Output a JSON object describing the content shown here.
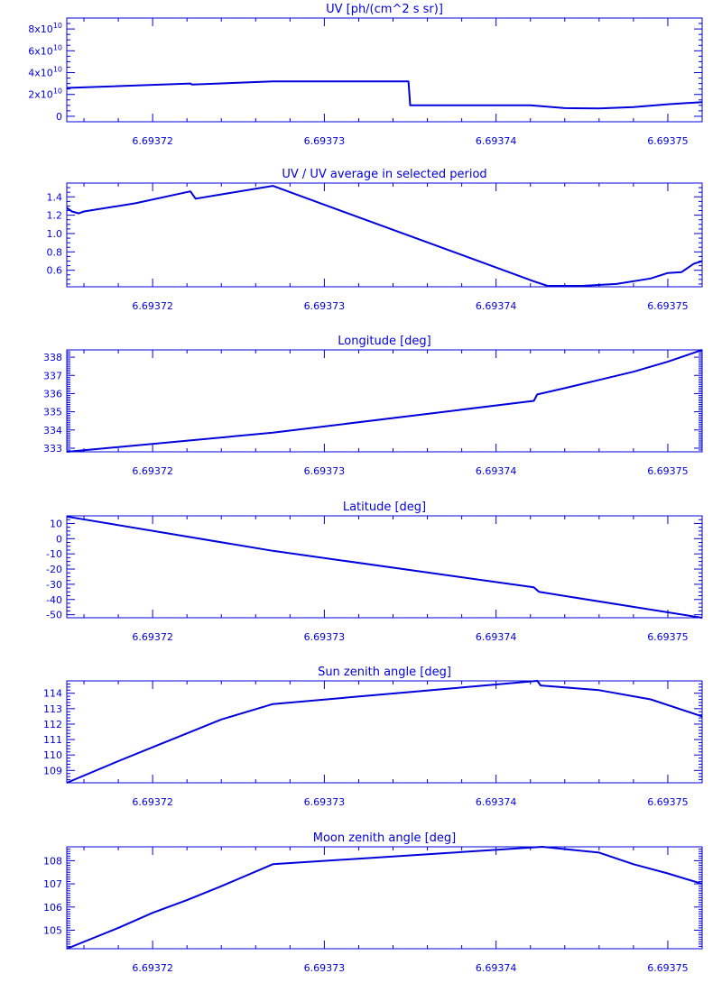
{
  "chart_data": [
    {
      "type": "line",
      "title": "UV [ph/(cm^2 s sr)]",
      "xticks": [
        "6.69372",
        "6.69373",
        "6.69374",
        "6.69375"
      ],
      "xtick_values": [
        6.69372,
        6.69373,
        6.69374,
        6.69375
      ],
      "yticks": [
        "0",
        "2x10^10",
        "4x10^10",
        "6x10^10",
        "8x10^10"
      ],
      "ytick_values": [
        0,
        20000000000.0,
        40000000000.0,
        60000000000.0,
        80000000000.0
      ],
      "xlim": [
        6.693715,
        6.693752
      ],
      "ylim": [
        -5000000000.0,
        90000000000.0
      ],
      "y_minor_per_major": 4,
      "series": [
        {
          "x": [
            6.693715,
            6.6937222,
            6.6937223,
            6.693727,
            6.6937349,
            6.693735,
            6.693742,
            6.693744,
            6.693746,
            6.693748,
            6.69375,
            6.693752
          ],
          "y": [
            26000000000.0,
            30000000000.0,
            29000000000.0,
            32000000000.0,
            32000000000.0,
            10000000000.0,
            10000000000.0,
            7500000000.0,
            7200000000.0,
            8500000000.0,
            11000000000.0,
            13000000000.0
          ]
        }
      ]
    },
    {
      "type": "line",
      "title": "UV / UV average in selected period",
      "xticks": [
        "6.69372",
        "6.69373",
        "6.69374",
        "6.69375"
      ],
      "xtick_values": [
        6.69372,
        6.69373,
        6.69374,
        6.69375
      ],
      "yticks": [
        "0.6",
        "0.8",
        "1.0",
        "1.2",
        "1.4"
      ],
      "ytick_values": [
        0.6,
        0.8,
        1.0,
        1.2,
        1.4
      ],
      "xlim": [
        6.693715,
        6.693752
      ],
      "ylim": [
        0.42,
        1.55
      ],
      "y_minor_per_major": 4,
      "series": [
        {
          "x": [
            6.693715,
            6.6937153,
            6.6937157,
            6.693716,
            6.693719,
            6.6937222,
            6.6937225,
            6.693727,
            6.6937422,
            6.693743,
            6.693745,
            6.693747,
            6.693749,
            6.69375,
            6.6937508,
            6.6937515,
            6.693752
          ],
          "y": [
            1.28,
            1.24,
            1.22,
            1.24,
            1.33,
            1.46,
            1.38,
            1.52,
            0.48,
            0.43,
            0.43,
            0.45,
            0.51,
            0.57,
            0.58,
            0.67,
            0.7
          ]
        }
      ]
    },
    {
      "type": "line",
      "title": "Longitude [deg]",
      "xticks": [
        "6.69372",
        "6.69373",
        "6.69374",
        "6.69375"
      ],
      "xtick_values": [
        6.69372,
        6.69373,
        6.69374,
        6.69375
      ],
      "yticks": [
        "333",
        "334",
        "335",
        "336",
        "337",
        "338"
      ],
      "ytick_values": [
        333,
        334,
        335,
        336,
        337,
        338
      ],
      "xlim": [
        6.693715,
        6.693752
      ],
      "ylim": [
        332.8,
        338.4
      ],
      "y_minor_per_major": 10,
      "series": [
        {
          "x": [
            6.693715,
            6.693727,
            6.6937422,
            6.6937424,
            6.693744,
            6.693746,
            6.693748,
            6.69375,
            6.693752
          ],
          "y": [
            332.8,
            333.85,
            335.6,
            335.95,
            336.3,
            336.75,
            337.2,
            337.75,
            338.4
          ]
        }
      ]
    },
    {
      "type": "line",
      "title": "Latitude [deg]",
      "xticks": [
        "6.69372",
        "6.69373",
        "6.69374",
        "6.69375"
      ],
      "xtick_values": [
        6.69372,
        6.69373,
        6.69374,
        6.69375
      ],
      "yticks": [
        "-50",
        "-40",
        "-30",
        "-20",
        "-10",
        "0",
        "10"
      ],
      "ytick_values": [
        -50,
        -40,
        -30,
        -20,
        -10,
        0,
        10
      ],
      "xlim": [
        6.693715,
        6.693752
      ],
      "ylim": [
        -52,
        15
      ],
      "y_minor_per_major": 4,
      "series": [
        {
          "x": [
            6.693715,
            6.693727,
            6.6937422,
            6.6937425,
            6.693752
          ],
          "y": [
            14.5,
            -8,
            -32,
            -35,
            -52
          ]
        }
      ]
    },
    {
      "type": "line",
      "title": "Sun zenith angle [deg]",
      "xticks": [
        "6.69372",
        "6.69373",
        "6.69374",
        "6.69375"
      ],
      "xtick_values": [
        6.69372,
        6.69373,
        6.69374,
        6.69375
      ],
      "yticks": [
        "109",
        "110",
        "111",
        "112",
        "113",
        "114"
      ],
      "ytick_values": [
        109,
        110,
        111,
        112,
        113,
        114
      ],
      "xlim": [
        6.693715,
        6.693752
      ],
      "ylim": [
        108.2,
        114.8
      ],
      "y_minor_per_major": 5,
      "series": [
        {
          "x": [
            6.693715,
            6.693718,
            6.69372,
            6.693722,
            6.693724,
            6.693727,
            6.6937424,
            6.6937426,
            6.693746,
            6.693749,
            6.693752
          ],
          "y": [
            108.2,
            109.6,
            110.5,
            111.4,
            112.3,
            113.3,
            114.8,
            114.5,
            114.2,
            113.6,
            112.5
          ]
        }
      ]
    },
    {
      "type": "line",
      "title": "Moon zenith angle [deg]",
      "xticks": [
        "6.69372",
        "6.69373",
        "6.69374",
        "6.69375"
      ],
      "xtick_values": [
        6.69372,
        6.69373,
        6.69374,
        6.69375
      ],
      "yticks": [
        "105",
        "106",
        "107",
        "108"
      ],
      "ytick_values": [
        105,
        106,
        107,
        108
      ],
      "xlim": [
        6.693715,
        6.693752
      ],
      "ylim": [
        104.2,
        108.6
      ],
      "y_minor_per_major": 10,
      "series": [
        {
          "x": [
            6.693715,
            6.693718,
            6.69372,
            6.693722,
            6.693724,
            6.693727,
            6.6937427,
            6.693746,
            6.693748,
            6.69375,
            6.693752
          ],
          "y": [
            104.2,
            105.1,
            105.75,
            106.3,
            106.9,
            107.85,
            108.6,
            108.35,
            107.85,
            107.45,
            107.0
          ]
        }
      ]
    }
  ]
}
